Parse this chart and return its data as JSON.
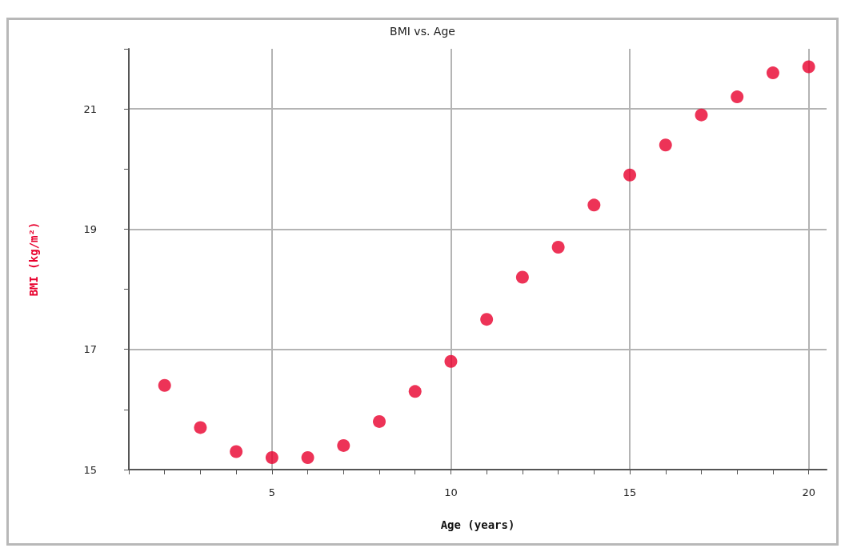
{
  "chart_data": {
    "type": "scatter",
    "title": "BMI vs. Age",
    "xlabel": "Age (years)",
    "ylabel": "BMI (kg/m²)",
    "x": [
      2,
      3,
      4,
      5,
      6,
      7,
      8,
      9,
      10,
      11,
      12,
      13,
      14,
      15,
      16,
      17,
      18,
      19,
      20
    ],
    "series": [
      {
        "color": "#e8002d",
        "values": [
          16.4,
          15.7,
          15.3,
          15.2,
          15.2,
          15.4,
          15.8,
          16.3,
          16.8,
          17.5,
          18.2,
          18.7,
          19.4,
          19.9,
          20.4,
          20.9,
          21.2,
          21.6,
          21.7
        ]
      }
    ],
    "xlim": [
      1,
      20.5
    ],
    "xticks": [
      {
        "value": 1,
        "label": null
      },
      {
        "value": 2,
        "label": null
      },
      {
        "value": 3,
        "label": null
      },
      {
        "value": 4,
        "label": null
      },
      5,
      {
        "value": 6,
        "label": null
      },
      {
        "value": 7,
        "label": null
      },
      {
        "value": 8,
        "label": null
      },
      {
        "value": 9,
        "label": null
      },
      10,
      {
        "value": 11,
        "label": null
      },
      {
        "value": 12,
        "label": null
      },
      {
        "value": 13,
        "label": null
      },
      {
        "value": 14,
        "label": null
      },
      15,
      {
        "value": 16,
        "label": null
      },
      {
        "value": 17,
        "label": null
      },
      {
        "value": 18,
        "label": null
      },
      {
        "value": 19,
        "label": null
      },
      20
    ],
    "ylim": [
      15,
      22
    ],
    "yticks": [
      15,
      {
        "value": 16,
        "label": null
      },
      17,
      {
        "value": 18,
        "label": null
      },
      19,
      {
        "value": 20,
        "label": null
      },
      21,
      {
        "value": 22,
        "label": null
      }
    ],
    "grid": true,
    "marker": "circle"
  }
}
